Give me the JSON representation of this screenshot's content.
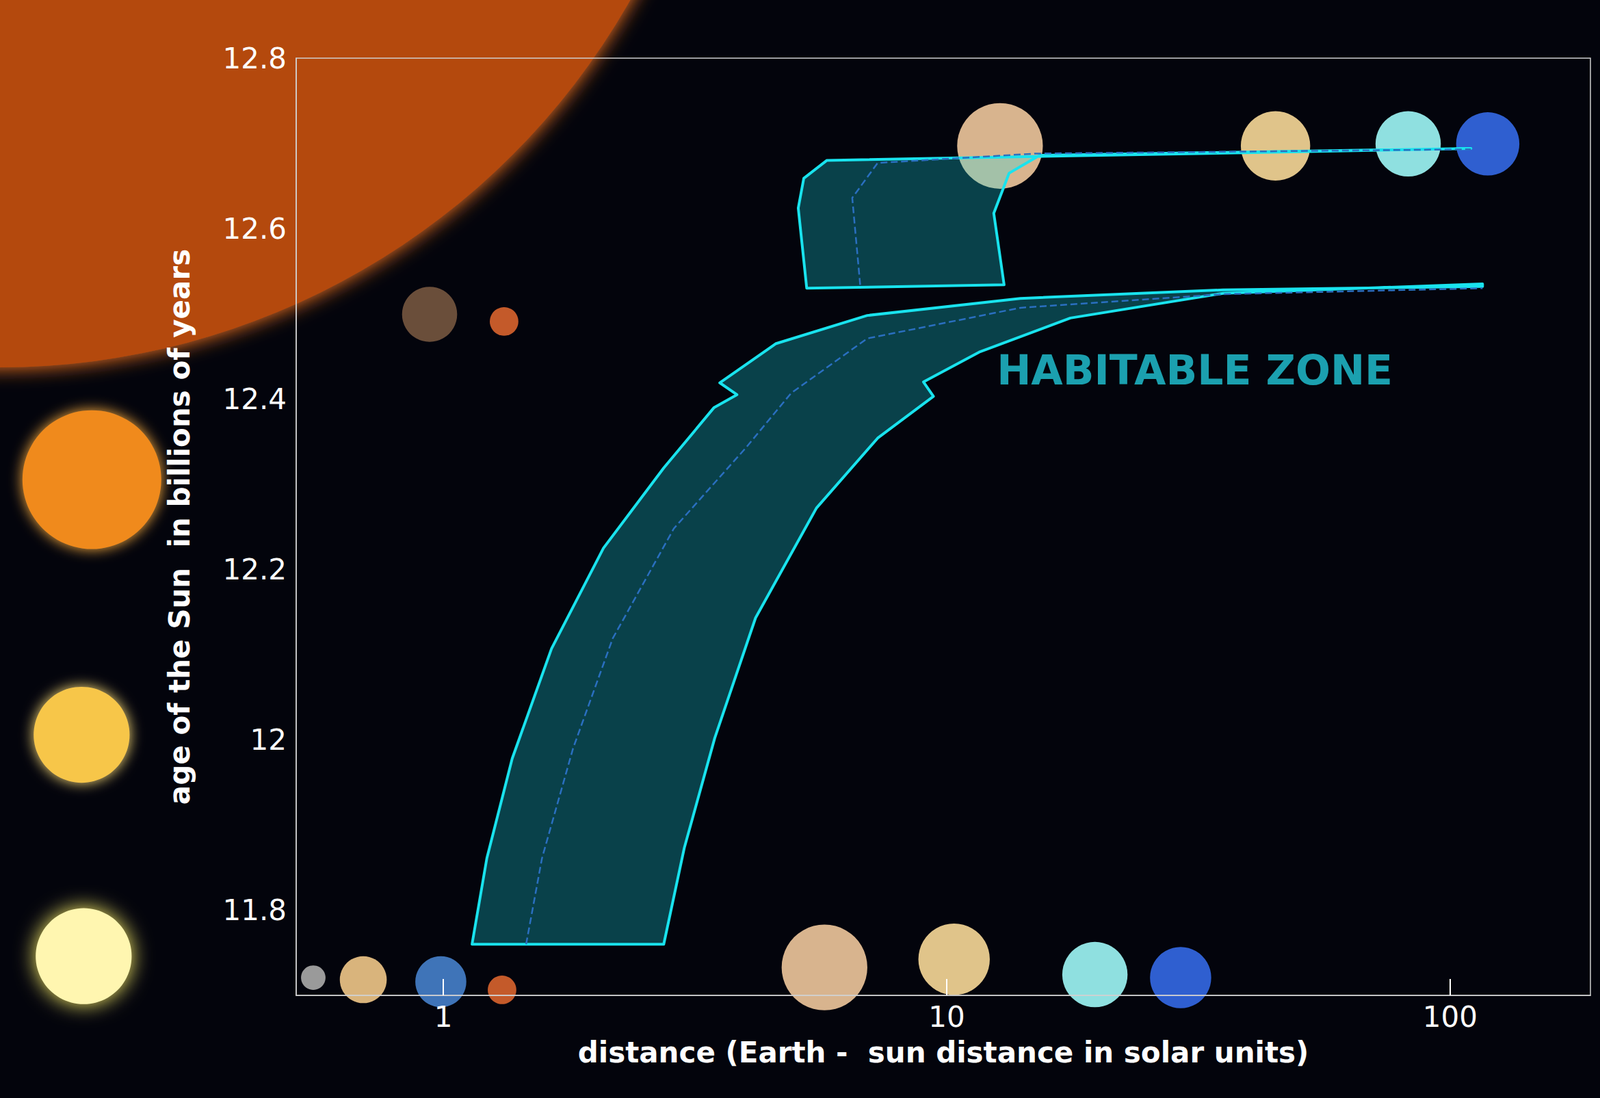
{
  "chart_data": {
    "type": "area",
    "x_label": "distance (Earth -  sun distance in solar units)",
    "y_label": "age of the Sun  in billions of years",
    "log": "x",
    "grid": false,
    "xlim": [
      0.51,
      190
    ],
    "xticks": [
      1,
      10,
      100
    ],
    "ylim": [
      11.7,
      12.8
    ],
    "yticks": [
      11.8,
      12,
      12.2,
      12.4,
      12.6,
      12.8
    ],
    "annotations": [
      {
        "text": "HABITABLE ZONE",
        "x": 31.1,
        "y": 12.434
      }
    ],
    "series": [
      {
        "type": "polygon",
        "color": "#19e3ee",
        "x": [
          1.14,
          1.22,
          1.37,
          1.64,
          2.08,
          2.74,
          3.45,
          3.83,
          3.54,
          4.58,
          6.95,
          14.0,
          35.4,
          116,
          116,
          35.4,
          17.6,
          11.6,
          8.99,
          9.41,
          7.29,
          5.51,
          4.17,
          3.46,
          3.01,
          2.74
        ],
        "y": [
          11.76,
          11.861,
          11.978,
          12.107,
          12.225,
          12.319,
          12.39,
          12.405,
          12.419,
          12.465,
          12.498,
          12.518,
          12.528,
          12.532,
          12.535,
          12.524,
          12.495,
          12.455,
          12.42,
          12.403,
          12.354,
          12.272,
          12.143,
          12.002,
          11.873,
          11.76
        ]
      },
      {
        "type": "polygon",
        "color": "#19e3ee",
        "x": [
          5.27,
          5.07,
          5.2,
          5.78,
          110,
          15.3,
          13.3,
          12.4,
          13.0
        ],
        "y": [
          12.53,
          12.624,
          12.659,
          12.68,
          12.694,
          12.686,
          12.665,
          12.618,
          12.534
        ]
      },
      {
        "type": "line",
        "line_style": "dashed",
        "color": "#2a6fc0",
        "x": [
          1.46,
          1.57,
          1.81,
          2.17,
          2.87,
          3.98,
          4.91,
          6.95,
          14.0,
          35.4,
          116
        ],
        "y": [
          11.76,
          11.861,
          11.99,
          12.119,
          12.248,
          12.342,
          12.407,
          12.471,
          12.507,
          12.523,
          12.53
        ]
      },
      {
        "type": "line",
        "line_style": "dashed",
        "color": "#2a6fc0",
        "x": [
          6.73,
          6.49,
          7.29,
          15,
          110
        ],
        "y": [
          12.534,
          12.636,
          12.677,
          12.688,
          12.693
        ]
      }
    ]
  }
}
